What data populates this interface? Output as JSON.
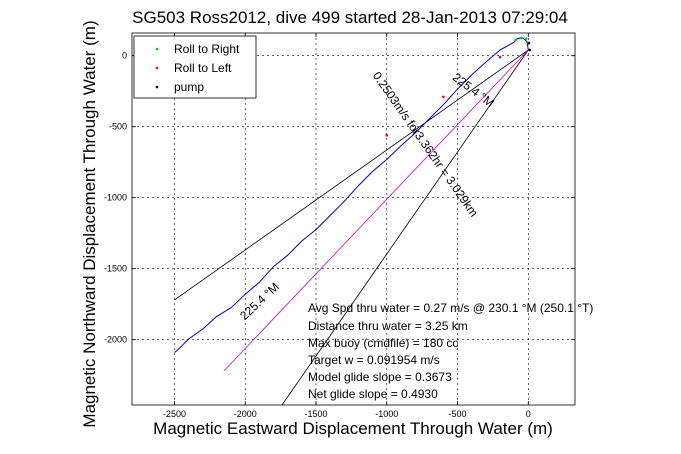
{
  "chart_data": {
    "type": "line",
    "title": "SG503 Ross2012, dive 499 started 28-Jan-2013 07:29:04",
    "xlabel": "Magnetic Eastward Displacement Through Water (m)",
    "ylabel": "Magnetic Northward Displacement Through Water (m)",
    "xlim": [
      -2800,
      330
    ],
    "ylim": [
      -2460,
      160
    ],
    "xticks": [
      -2500,
      -2000,
      -1500,
      -1000,
      -500,
      0
    ],
    "yticks": [
      0,
      -500,
      -1000,
      -1500,
      -2000
    ],
    "xtick_labels": [
      "-2500",
      "-2000",
      "-1500",
      "-1000",
      "-500",
      "0"
    ],
    "ytick_labels": [
      "0",
      "-500",
      "-1000",
      "-1500",
      "-2000"
    ],
    "grid": true,
    "legend_position": "top-left",
    "legend": [
      "Roll to Right",
      "Roll to Left",
      "pump"
    ],
    "series": [
      {
        "name": "Roll to Right",
        "color": "#00cc00",
        "marker": "dot",
        "x": [
          -15,
          -50,
          -90
        ],
        "y": [
          120,
          125,
          112
        ]
      },
      {
        "name": "Roll to Left",
        "color": "#ff0000",
        "marker": "dot",
        "x": [
          -200,
          -600,
          -1000
        ],
        "y": [
          -10,
          -290,
          -560
        ]
      },
      {
        "name": "pump",
        "color": "#000000",
        "marker": "dot",
        "x": [
          10,
          5
        ],
        "y": [
          40,
          90
        ]
      }
    ],
    "track": {
      "color": "#0000cc",
      "x": [
        0,
        -10,
        -35,
        -60,
        -80,
        -100,
        -200,
        -300,
        -400,
        -500,
        -600,
        -700,
        -800,
        -900,
        -1000,
        -1100,
        -1200,
        -1300,
        -1400,
        -1500,
        -1600,
        -1700,
        -1800,
        -1900,
        -2000,
        -2100,
        -2200,
        -2300,
        -2400,
        -2440,
        -2480,
        -2500
      ],
      "y": [
        40,
        100,
        122,
        125,
        118,
        95,
        40,
        -45,
        -135,
        -235,
        -345,
        -445,
        -545,
        -635,
        -730,
        -815,
        -915,
        -1025,
        -1125,
        -1225,
        -1305,
        -1405,
        -1485,
        -1595,
        -1680,
        -1775,
        -1835,
        -1925,
        -1995,
        -2035,
        -2075,
        -2090
      ]
    },
    "guide_lines": [
      {
        "color": "#000000",
        "x": [
          0,
          -2500
        ],
        "y": [
          40,
          -1720
        ]
      },
      {
        "color": "#000000",
        "x": [
          0,
          -1740
        ],
        "y": [
          40,
          -2460
        ]
      }
    ],
    "target_line": {
      "color": "#cc00cc",
      "x": [
        0,
        -2150
      ],
      "y": [
        40,
        -2220
      ]
    },
    "line_labels": [
      {
        "text": "225.4 °M",
        "x": -405,
        "y": -265,
        "angle": 37
      },
      {
        "text": "0.2503m/s for3.362hr = 3.029km",
        "x": -750,
        "y": -640,
        "angle": 55
      },
      {
        "text": "225.4 °M",
        "x": -1880,
        "y": -1750,
        "angle": -43
      }
    ],
    "annotations": [
      "Avg Spd thru water =  0.27 m/s @ 230.1  °M (250.1 °T)",
      "Distance thru water =  3.25 km",
      "Max buoy (cmdfile) = 180 cc",
      "Target w = 0.091954 m/s",
      "Model glide slope = 0.3673",
      "Net glide slope = 0.4930"
    ]
  }
}
